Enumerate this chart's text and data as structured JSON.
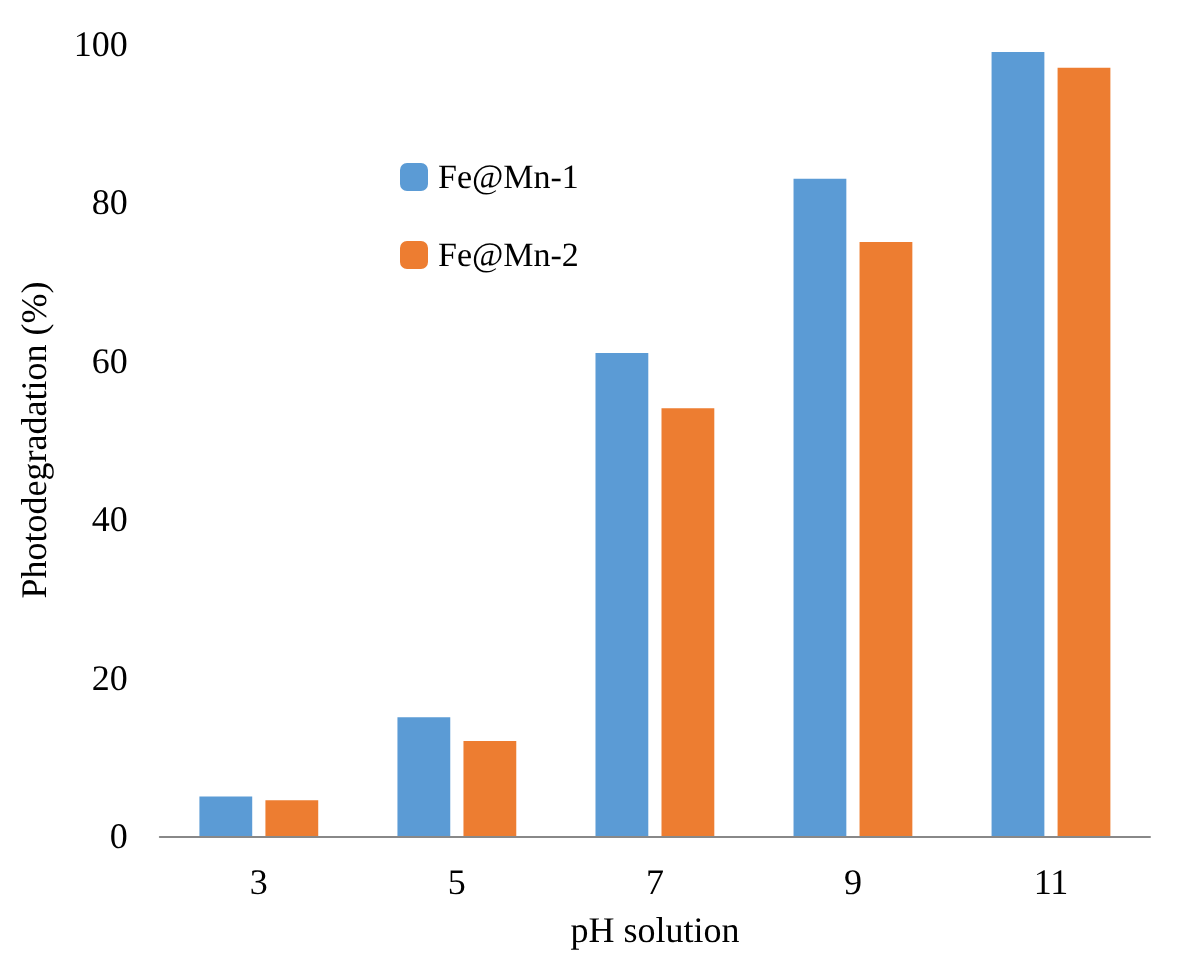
{
  "chart_data": {
    "type": "bar",
    "xlabel": "pH solution",
    "ylabel": "Photodegradation (%)",
    "categories": [
      "3",
      "5",
      "7",
      "9",
      "11"
    ],
    "series": [
      {
        "name": "Fe@Mn-1",
        "color": "#5b9bd5",
        "values": [
          5,
          15,
          61,
          83,
          99
        ]
      },
      {
        "name": "Fe@Mn-2",
        "color": "#ed7d31",
        "values": [
          4.5,
          12,
          54,
          75,
          97
        ]
      }
    ],
    "ylim": [
      0,
      100
    ],
    "yticks": [
      0,
      20,
      40,
      60,
      80,
      100
    ],
    "grid": false,
    "legend": "top left"
  }
}
